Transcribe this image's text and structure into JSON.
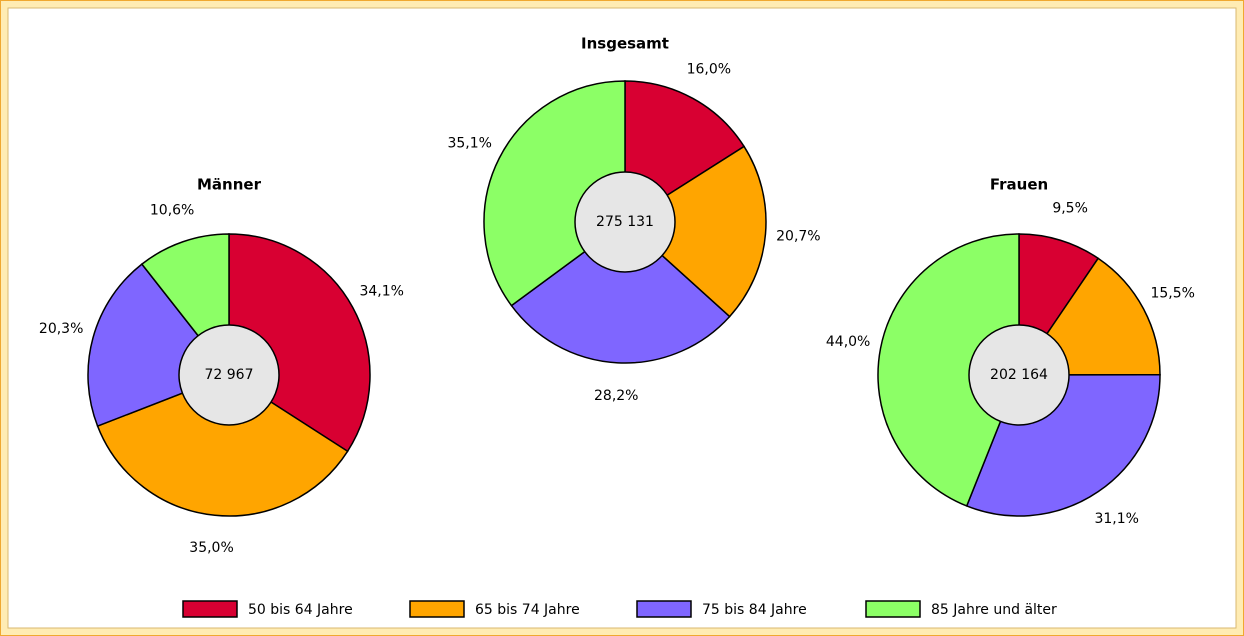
{
  "categories": [
    "50 bis 64 Jahre",
    "65 bis 74 Jahre",
    "75 bis 84 Jahre",
    "85 Jahre und älter"
  ],
  "colors": [
    "#d80032",
    "#ffa500",
    "#7f66ff",
    "#8cff66"
  ],
  "chart_data": [
    {
      "type": "pie",
      "title": "Männer",
      "values": [
        34.1,
        35.0,
        20.3,
        10.6
      ],
      "value_labels": [
        "34,1%",
        "35,0%",
        "20,3%",
        "10,6%"
      ],
      "total": {
        "value": 72967,
        "label": "72 967"
      }
    },
    {
      "type": "pie",
      "title": "Insgesamt",
      "values": [
        16.0,
        20.7,
        28.2,
        35.1
      ],
      "value_labels": [
        "16,0%",
        "20,7%",
        "28,2%",
        "35,1%"
      ],
      "total": {
        "value": 275131,
        "label": "275 131"
      }
    },
    {
      "type": "pie",
      "title": "Frauen",
      "values": [
        9.5,
        15.5,
        31.1,
        44.0
      ],
      "value_labels": [
        "9,5%",
        "15,5%",
        "31,1%",
        "44,0%"
      ],
      "total": {
        "value": 202164,
        "label": "202 164"
      }
    }
  ]
}
